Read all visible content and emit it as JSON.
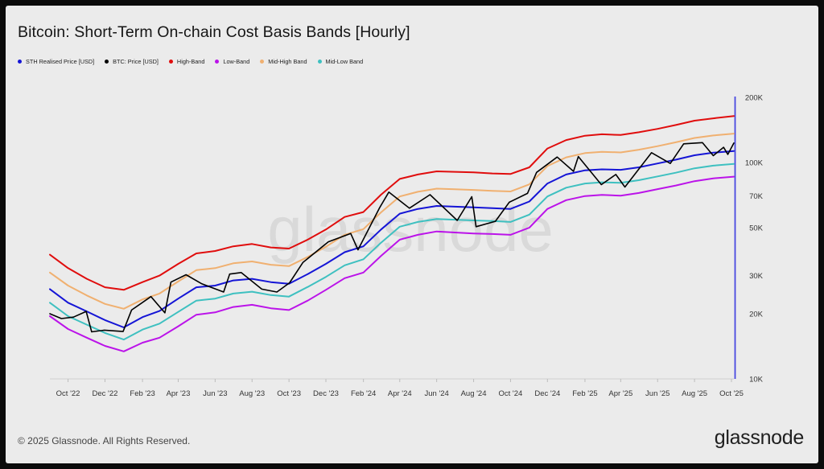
{
  "footer": "© 2025 Glassnode. All Rights Reserved.",
  "brand": "glassnode",
  "watermark": "glassnode",
  "chart_data": {
    "type": "line",
    "title": "Bitcoin: Short-Term On-chain Cost Basis Bands [Hourly]",
    "y_scale": "log",
    "ylim": [
      10000,
      200000
    ],
    "y_ticks": [
      {
        "value": 200000,
        "label": "200K"
      },
      {
        "value": 100000,
        "label": "100K"
      },
      {
        "value": 70000,
        "label": "70K"
      },
      {
        "value": 50000,
        "label": "50K"
      },
      {
        "value": 30000,
        "label": "30K"
      },
      {
        "value": 20000,
        "label": "20K"
      },
      {
        "value": 10000,
        "label": "10K"
      }
    ],
    "x_range": [
      "2022-09-01",
      "2025-10-05"
    ],
    "x_ticks": [
      {
        "value": "2022-10-01",
        "label": "Oct '22"
      },
      {
        "value": "2022-12-01",
        "label": "Dec '22"
      },
      {
        "value": "2023-02-01",
        "label": "Feb '23"
      },
      {
        "value": "2023-04-01",
        "label": "Apr '23"
      },
      {
        "value": "2023-06-01",
        "label": "Jun '23"
      },
      {
        "value": "2023-08-01",
        "label": "Aug '23"
      },
      {
        "value": "2023-10-01",
        "label": "Oct '23"
      },
      {
        "value": "2023-12-01",
        "label": "Dec '23"
      },
      {
        "value": "2024-02-01",
        "label": "Feb '24"
      },
      {
        "value": "2024-04-01",
        "label": "Apr '24"
      },
      {
        "value": "2024-06-01",
        "label": "Jun '24"
      },
      {
        "value": "2024-08-01",
        "label": "Aug '24"
      },
      {
        "value": "2024-10-01",
        "label": "Oct '24"
      },
      {
        "value": "2024-12-01",
        "label": "Dec '24"
      },
      {
        "value": "2025-02-01",
        "label": "Feb '25"
      },
      {
        "value": "2025-04-01",
        "label": "Apr '25"
      },
      {
        "value": "2025-06-01",
        "label": "Jun '25"
      },
      {
        "value": "2025-08-01",
        "label": "Aug '25"
      },
      {
        "value": "2025-10-01",
        "label": "Oct '25"
      }
    ],
    "grid": false,
    "legend_position": "top-left",
    "series": [
      {
        "name": "STH Realised Price [USD]",
        "color": "#1515d6",
        "points": [
          [
            "2022-09-01",
            26000
          ],
          [
            "2022-10-01",
            22500
          ],
          [
            "2022-11-01",
            20500
          ],
          [
            "2022-12-01",
            18700
          ],
          [
            "2023-01-01",
            17300
          ],
          [
            "2023-02-01",
            19300
          ],
          [
            "2023-03-01",
            20600
          ],
          [
            "2023-04-01",
            23500
          ],
          [
            "2023-05-01",
            26500
          ],
          [
            "2023-06-01",
            27000
          ],
          [
            "2023-07-01",
            28500
          ],
          [
            "2023-08-01",
            29000
          ],
          [
            "2023-09-01",
            28000
          ],
          [
            "2023-10-01",
            27500
          ],
          [
            "2023-11-01",
            30500
          ],
          [
            "2023-12-01",
            34000
          ],
          [
            "2024-01-01",
            38500
          ],
          [
            "2024-02-01",
            41000
          ],
          [
            "2024-03-01",
            49000
          ],
          [
            "2024-04-01",
            58000
          ],
          [
            "2024-05-01",
            61000
          ],
          [
            "2024-06-01",
            63000
          ],
          [
            "2024-07-01",
            62500
          ],
          [
            "2024-08-01",
            62000
          ],
          [
            "2024-09-01",
            61500
          ],
          [
            "2024-10-01",
            61000
          ],
          [
            "2024-11-01",
            66000
          ],
          [
            "2024-12-01",
            80000
          ],
          [
            "2025-01-01",
            88000
          ],
          [
            "2025-02-01",
            92000
          ],
          [
            "2025-03-01",
            93000
          ],
          [
            "2025-04-01",
            92500
          ],
          [
            "2025-05-01",
            95000
          ],
          [
            "2025-06-01",
            99000
          ],
          [
            "2025-07-01",
            103000
          ],
          [
            "2025-08-01",
            108000
          ],
          [
            "2025-09-01",
            111000
          ],
          [
            "2025-10-05",
            113000
          ]
        ]
      },
      {
        "name": "BTC: Price [USD]",
        "color": "#000000",
        "points": [
          [
            "2022-09-01",
            20000
          ],
          [
            "2022-09-20",
            19000
          ],
          [
            "2022-10-10",
            19300
          ],
          [
            "2022-10-31",
            20500
          ],
          [
            "2022-11-09",
            16500
          ],
          [
            "2022-11-30",
            16800
          ],
          [
            "2022-12-31",
            16550
          ],
          [
            "2023-01-14",
            20800
          ],
          [
            "2023-02-15",
            24000
          ],
          [
            "2023-03-10",
            20200
          ],
          [
            "2023-03-20",
            28000
          ],
          [
            "2023-04-14",
            30300
          ],
          [
            "2023-05-10",
            27500
          ],
          [
            "2023-06-15",
            25200
          ],
          [
            "2023-06-25",
            30500
          ],
          [
            "2023-07-14",
            31000
          ],
          [
            "2023-08-17",
            26000
          ],
          [
            "2023-09-11",
            25200
          ],
          [
            "2023-10-02",
            27800
          ],
          [
            "2023-10-24",
            34500
          ],
          [
            "2023-12-05",
            43000
          ],
          [
            "2024-01-11",
            47000
          ],
          [
            "2024-01-23",
            39500
          ],
          [
            "2024-02-28",
            62000
          ],
          [
            "2024-03-14",
            73000
          ],
          [
            "2024-04-17",
            61500
          ],
          [
            "2024-05-21",
            71000
          ],
          [
            "2024-07-05",
            54000
          ],
          [
            "2024-07-29",
            69500
          ],
          [
            "2024-08-05",
            50500
          ],
          [
            "2024-09-06",
            53500
          ],
          [
            "2024-09-29",
            65500
          ],
          [
            "2024-10-29",
            72000
          ],
          [
            "2024-11-13",
            90000
          ],
          [
            "2024-12-17",
            106000
          ],
          [
            "2025-01-13",
            91000
          ],
          [
            "2025-01-21",
            106500
          ],
          [
            "2025-02-28",
            79000
          ],
          [
            "2025-03-24",
            88000
          ],
          [
            "2025-04-08",
            77000
          ],
          [
            "2025-05-22",
            111000
          ],
          [
            "2025-06-22",
            99000
          ],
          [
            "2025-07-14",
            122000
          ],
          [
            "2025-08-14",
            123500
          ],
          [
            "2025-09-01",
            107500
          ],
          [
            "2025-09-18",
            117500
          ],
          [
            "2025-09-25",
            109000
          ],
          [
            "2025-10-05",
            123000
          ]
        ]
      },
      {
        "name": "High-Band",
        "color": "#e00d0d",
        "points": [
          [
            "2022-09-01",
            37500
          ],
          [
            "2022-10-01",
            32500
          ],
          [
            "2022-11-01",
            29000
          ],
          [
            "2022-12-01",
            26500
          ],
          [
            "2023-01-01",
            25800
          ],
          [
            "2023-02-01",
            28000
          ],
          [
            "2023-03-01",
            30000
          ],
          [
            "2023-04-01",
            34000
          ],
          [
            "2023-05-01",
            38000
          ],
          [
            "2023-06-01",
            39000
          ],
          [
            "2023-07-01",
            41000
          ],
          [
            "2023-08-01",
            42000
          ],
          [
            "2023-09-01",
            40500
          ],
          [
            "2023-10-01",
            40000
          ],
          [
            "2023-11-01",
            44000
          ],
          [
            "2023-12-01",
            49000
          ],
          [
            "2024-01-01",
            56000
          ],
          [
            "2024-02-01",
            59000
          ],
          [
            "2024-03-01",
            71000
          ],
          [
            "2024-04-01",
            84000
          ],
          [
            "2024-05-01",
            88000
          ],
          [
            "2024-06-01",
            91000
          ],
          [
            "2024-07-01",
            90500
          ],
          [
            "2024-08-01",
            90000
          ],
          [
            "2024-09-01",
            89000
          ],
          [
            "2024-10-01",
            88500
          ],
          [
            "2024-11-01",
            95000
          ],
          [
            "2024-12-01",
            116000
          ],
          [
            "2025-01-01",
            127000
          ],
          [
            "2025-02-01",
            133000
          ],
          [
            "2025-03-01",
            135000
          ],
          [
            "2025-04-01",
            134000
          ],
          [
            "2025-05-01",
            138000
          ],
          [
            "2025-06-01",
            143000
          ],
          [
            "2025-07-01",
            149000
          ],
          [
            "2025-08-01",
            156000
          ],
          [
            "2025-09-01",
            160000
          ],
          [
            "2025-10-05",
            164000
          ]
        ]
      },
      {
        "name": "Low-Band",
        "color": "#bb13e9",
        "points": [
          [
            "2022-09-01",
            19500
          ],
          [
            "2022-10-01",
            17000
          ],
          [
            "2022-11-01",
            15500
          ],
          [
            "2022-12-01",
            14200
          ],
          [
            "2023-01-01",
            13400
          ],
          [
            "2023-02-01",
            14700
          ],
          [
            "2023-03-01",
            15500
          ],
          [
            "2023-04-01",
            17500
          ],
          [
            "2023-05-01",
            19800
          ],
          [
            "2023-06-01",
            20300
          ],
          [
            "2023-07-01",
            21500
          ],
          [
            "2023-08-01",
            22000
          ],
          [
            "2023-09-01",
            21200
          ],
          [
            "2023-10-01",
            20800
          ],
          [
            "2023-11-01",
            23000
          ],
          [
            "2023-12-01",
            25800
          ],
          [
            "2024-01-01",
            29200
          ],
          [
            "2024-02-01",
            31000
          ],
          [
            "2024-03-01",
            37000
          ],
          [
            "2024-04-01",
            44000
          ],
          [
            "2024-05-01",
            46300
          ],
          [
            "2024-06-01",
            48000
          ],
          [
            "2024-07-01",
            47500
          ],
          [
            "2024-08-01",
            47000
          ],
          [
            "2024-09-01",
            46700
          ],
          [
            "2024-10-01",
            46300
          ],
          [
            "2024-11-01",
            50000
          ],
          [
            "2024-12-01",
            61000
          ],
          [
            "2025-01-01",
            67000
          ],
          [
            "2025-02-01",
            70000
          ],
          [
            "2025-03-01",
            70800
          ],
          [
            "2025-04-01",
            70300
          ],
          [
            "2025-05-01",
            72300
          ],
          [
            "2025-06-01",
            75300
          ],
          [
            "2025-07-01",
            78300
          ],
          [
            "2025-08-01",
            82000
          ],
          [
            "2025-09-01",
            84500
          ],
          [
            "2025-10-05",
            86000
          ]
        ]
      },
      {
        "name": "Mid-High Band",
        "color": "#f0b070",
        "points": [
          [
            "2022-09-01",
            31000
          ],
          [
            "2022-10-01",
            27000
          ],
          [
            "2022-11-01",
            24300
          ],
          [
            "2022-12-01",
            22200
          ],
          [
            "2023-01-01",
            21100
          ],
          [
            "2023-02-01",
            23300
          ],
          [
            "2023-03-01",
            24800
          ],
          [
            "2023-04-01",
            28200
          ],
          [
            "2023-05-01",
            31800
          ],
          [
            "2023-06-01",
            32500
          ],
          [
            "2023-07-01",
            34200
          ],
          [
            "2023-08-01",
            34900
          ],
          [
            "2023-09-01",
            33700
          ],
          [
            "2023-10-01",
            33200
          ],
          [
            "2023-11-01",
            36600
          ],
          [
            "2023-12-01",
            40800
          ],
          [
            "2024-01-01",
            46300
          ],
          [
            "2024-02-01",
            49200
          ],
          [
            "2024-03-01",
            58800
          ],
          [
            "2024-04-01",
            69700
          ],
          [
            "2024-05-01",
            73200
          ],
          [
            "2024-06-01",
            75700
          ],
          [
            "2024-07-01",
            75200
          ],
          [
            "2024-08-01",
            74700
          ],
          [
            "2024-09-01",
            74000
          ],
          [
            "2024-10-01",
            73500
          ],
          [
            "2024-11-01",
            79200
          ],
          [
            "2024-12-01",
            96300
          ],
          [
            "2025-01-01",
            105600
          ],
          [
            "2025-02-01",
            110500
          ],
          [
            "2025-03-01",
            112000
          ],
          [
            "2025-04-01",
            111300
          ],
          [
            "2025-05-01",
            114600
          ],
          [
            "2025-06-01",
            119000
          ],
          [
            "2025-07-01",
            123900
          ],
          [
            "2025-08-01",
            129800
          ],
          [
            "2025-09-01",
            133300
          ],
          [
            "2025-10-05",
            136000
          ]
        ]
      },
      {
        "name": "Mid-Low Band",
        "color": "#3ec0c0",
        "points": [
          [
            "2022-09-01",
            22500
          ],
          [
            "2022-10-01",
            19500
          ],
          [
            "2022-11-01",
            17800
          ],
          [
            "2022-12-01",
            16300
          ],
          [
            "2023-01-01",
            15200
          ],
          [
            "2023-02-01",
            16900
          ],
          [
            "2023-03-01",
            18000
          ],
          [
            "2023-04-01",
            20400
          ],
          [
            "2023-05-01",
            23000
          ],
          [
            "2023-06-01",
            23500
          ],
          [
            "2023-07-01",
            24800
          ],
          [
            "2023-08-01",
            25300
          ],
          [
            "2023-09-01",
            24400
          ],
          [
            "2023-10-01",
            24000
          ],
          [
            "2023-11-01",
            26600
          ],
          [
            "2023-12-01",
            29600
          ],
          [
            "2024-01-01",
            33500
          ],
          [
            "2024-02-01",
            35700
          ],
          [
            "2024-03-01",
            42600
          ],
          [
            "2024-04-01",
            50500
          ],
          [
            "2024-05-01",
            53100
          ],
          [
            "2024-06-01",
            54800
          ],
          [
            "2024-07-01",
            54400
          ],
          [
            "2024-08-01",
            54000
          ],
          [
            "2024-09-01",
            53600
          ],
          [
            "2024-10-01",
            53100
          ],
          [
            "2024-11-01",
            57400
          ],
          [
            "2024-12-01",
            69700
          ],
          [
            "2025-01-01",
            76500
          ],
          [
            "2025-02-01",
            80000
          ],
          [
            "2025-03-01",
            81000
          ],
          [
            "2025-04-01",
            80500
          ],
          [
            "2025-05-01",
            82800
          ],
          [
            "2025-06-01",
            86200
          ],
          [
            "2025-07-01",
            89700
          ],
          [
            "2025-08-01",
            94000
          ],
          [
            "2025-09-01",
            96700
          ],
          [
            "2025-10-05",
            98500
          ]
        ]
      }
    ]
  }
}
